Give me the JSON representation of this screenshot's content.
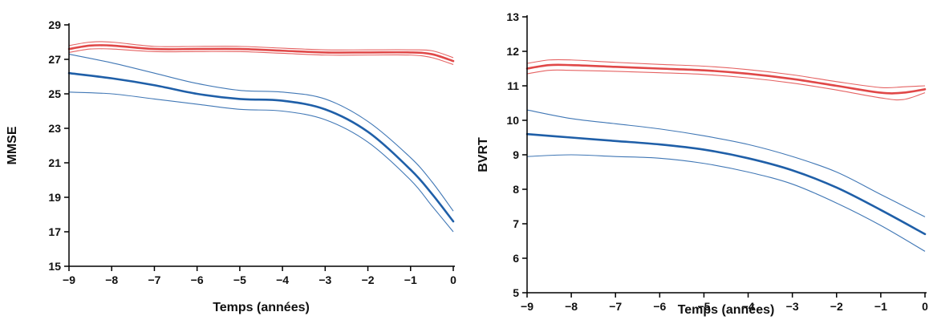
{
  "colors": {
    "series_1": "#e04848",
    "series_2": "#1f5fa8",
    "axis": "#000000"
  },
  "chart_data": [
    {
      "type": "line",
      "xlabel": "Temps (années)",
      "ylabel": "MMSE",
      "xlim": [
        -9,
        0
      ],
      "ylim": [
        15,
        29
      ],
      "x_ticks": [
        "−9",
        "−8",
        "−7",
        "−6",
        "−5",
        "−4",
        "−3",
        "−2",
        "−1",
        "0"
      ],
      "y_ticks": [
        "15",
        "17",
        "19",
        "21",
        "23",
        "25",
        "27",
        "29"
      ],
      "grid": false,
      "series": [
        {
          "color": "#e04848",
          "x": [
            -9,
            -8.5,
            -8,
            -7,
            -6,
            -5,
            -4,
            -3,
            -2,
            -1,
            -0.5,
            0
          ],
          "values": [
            27.6,
            27.8,
            27.8,
            27.6,
            27.6,
            27.6,
            27.5,
            27.4,
            27.4,
            27.4,
            27.3,
            26.9
          ],
          "upper": [
            27.8,
            28.0,
            28.0,
            27.75,
            27.75,
            27.75,
            27.65,
            27.55,
            27.55,
            27.55,
            27.5,
            27.1
          ],
          "lower": [
            27.4,
            27.6,
            27.6,
            27.45,
            27.45,
            27.45,
            27.35,
            27.25,
            27.25,
            27.25,
            27.1,
            26.7
          ]
        },
        {
          "color": "#1f5fa8",
          "x": [
            -9,
            -8,
            -7,
            -6,
            -5,
            -4,
            -3,
            -2,
            -1,
            -0.5,
            0
          ],
          "values": [
            26.2,
            25.9,
            25.5,
            25.0,
            24.7,
            24.6,
            24.1,
            22.8,
            20.6,
            19.2,
            17.6
          ],
          "upper": [
            27.3,
            26.8,
            26.2,
            25.6,
            25.2,
            25.1,
            24.7,
            23.4,
            21.3,
            19.9,
            18.2
          ],
          "lower": [
            25.1,
            25.0,
            24.7,
            24.4,
            24.1,
            24.0,
            23.5,
            22.2,
            20.0,
            18.5,
            17.0
          ]
        }
      ]
    },
    {
      "type": "line",
      "xlabel": "Temps (années)",
      "ylabel": "BVRT",
      "xlim": [
        -9,
        0
      ],
      "ylim": [
        5,
        13
      ],
      "x_ticks": [
        "−9",
        "−8",
        "−7",
        "−6",
        "−5",
        "−4",
        "−3",
        "−2",
        "−1",
        "0"
      ],
      "y_ticks": [
        "5",
        "6",
        "7",
        "8",
        "9",
        "10",
        "11",
        "12",
        "13"
      ],
      "grid": false,
      "series": [
        {
          "color": "#e04848",
          "x": [
            -9,
            -8.5,
            -8,
            -7,
            -6,
            -5,
            -4,
            -3,
            -2,
            -1,
            -0.5,
            0
          ],
          "values": [
            11.5,
            11.6,
            11.6,
            11.55,
            11.5,
            11.45,
            11.35,
            11.2,
            11.0,
            10.8,
            10.8,
            10.9
          ],
          "upper": [
            11.65,
            11.75,
            11.75,
            11.68,
            11.62,
            11.57,
            11.47,
            11.32,
            11.12,
            10.95,
            10.97,
            11.0
          ],
          "lower": [
            11.35,
            11.45,
            11.45,
            11.42,
            11.38,
            11.33,
            11.23,
            11.08,
            10.88,
            10.65,
            10.6,
            10.8
          ]
        },
        {
          "color": "#1f5fa8",
          "x": [
            -9,
            -8,
            -7,
            -6,
            -5,
            -4,
            -3,
            -2,
            -1,
            0
          ],
          "values": [
            9.6,
            9.5,
            9.4,
            9.3,
            9.15,
            8.9,
            8.55,
            8.05,
            7.4,
            6.7
          ],
          "upper": [
            10.3,
            10.05,
            9.9,
            9.75,
            9.55,
            9.3,
            8.95,
            8.5,
            7.85,
            7.2
          ],
          "lower": [
            8.95,
            9.0,
            8.95,
            8.9,
            8.75,
            8.5,
            8.15,
            7.6,
            6.95,
            6.2
          ]
        }
      ]
    }
  ]
}
